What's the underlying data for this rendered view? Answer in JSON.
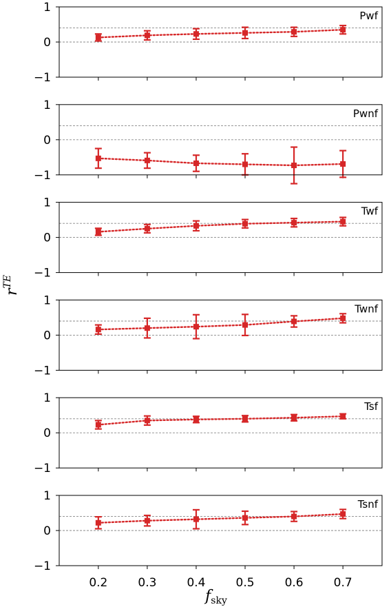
{
  "chart_data": {
    "type": "scatter",
    "xlabel": "f",
    "xlabel_sub": "sky",
    "ylabel": "r",
    "ylabel_sup": "TE",
    "x_ticks": [
      "0.2",
      "0.3",
      "0.4",
      "0.5",
      "0.6",
      "0.7"
    ],
    "y_ticks": [
      "1",
      "0",
      "−1"
    ],
    "xlim": [
      0.12,
      0.78
    ],
    "ylim": [
      -1,
      1
    ],
    "reference_lines": [
      0,
      0.4
    ],
    "colors": {
      "series": "#d62728",
      "reference": "#888888",
      "frame": "#000000"
    },
    "panels": [
      {
        "label": "Pwf",
        "x": [
          0.2,
          0.3,
          0.4,
          0.5,
          0.6,
          0.7
        ],
        "y": [
          0.13,
          0.19,
          0.23,
          0.26,
          0.29,
          0.35
        ],
        "err": [
          0.1,
          0.13,
          0.15,
          0.16,
          0.13,
          0.12
        ]
      },
      {
        "label": "Pwnf",
        "x": [
          0.2,
          0.3,
          0.4,
          0.5,
          0.6,
          0.7
        ],
        "y": [
          -0.53,
          -0.59,
          -0.67,
          -0.7,
          -0.73,
          -0.69
        ],
        "err": [
          0.28,
          0.22,
          0.23,
          0.3,
          0.52,
          0.38
        ]
      },
      {
        "label": "Twf",
        "x": [
          0.2,
          0.3,
          0.4,
          0.5,
          0.6,
          0.7
        ],
        "y": [
          0.16,
          0.25,
          0.33,
          0.39,
          0.42,
          0.45
        ],
        "err": [
          0.1,
          0.12,
          0.14,
          0.12,
          0.12,
          0.12
        ]
      },
      {
        "label": "Twnf",
        "x": [
          0.2,
          0.3,
          0.4,
          0.5,
          0.6,
          0.7
        ],
        "y": [
          0.16,
          0.2,
          0.24,
          0.29,
          0.39,
          0.48
        ],
        "err": [
          0.13,
          0.28,
          0.34,
          0.3,
          0.16,
          0.13
        ]
      },
      {
        "label": "Tsf",
        "x": [
          0.2,
          0.3,
          0.4,
          0.5,
          0.6,
          0.7
        ],
        "y": [
          0.23,
          0.35,
          0.38,
          0.4,
          0.43,
          0.47
        ],
        "err": [
          0.12,
          0.13,
          0.09,
          0.09,
          0.09,
          0.07
        ]
      },
      {
        "label": "Tsnf",
        "x": [
          0.2,
          0.3,
          0.4,
          0.5,
          0.6,
          0.7
        ],
        "y": [
          0.22,
          0.28,
          0.32,
          0.36,
          0.4,
          0.47
        ],
        "err": [
          0.17,
          0.15,
          0.27,
          0.19,
          0.14,
          0.13
        ]
      }
    ]
  }
}
